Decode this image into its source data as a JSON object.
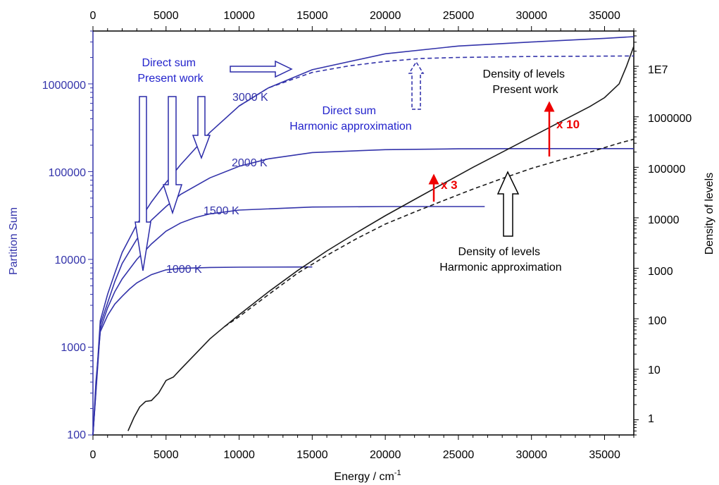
{
  "chart_data": {
    "type": "line",
    "xlabel": "Energy / cm",
    "xlabel_superscript": "-1",
    "ylabel_left": "Partition Sum",
    "ylabel_right": "Density of levels",
    "xlim": [
      0,
      37000
    ],
    "ylim_left": [
      100,
      4000000
    ],
    "ylim_right": [
      0.5,
      50000000
    ],
    "log_scale_y": true,
    "x_ticks": [
      "0",
      "5000",
      "10000",
      "15000",
      "20000",
      "25000",
      "30000",
      "35000"
    ],
    "y_left_ticks": [
      "100",
      "1000",
      "10000",
      "100000",
      "1000000"
    ],
    "y_right_ticks": [
      "1",
      "10",
      "100",
      "1000",
      "10000",
      "100000",
      "1000000",
      "1E7"
    ],
    "colors": {
      "partition": "#3333aa",
      "density": "#1a1a1a",
      "highlight": "#ee0000",
      "text_blue": "#2222cc"
    },
    "series": [
      {
        "axis": "left",
        "style": "solid",
        "label": "1000 K",
        "x": [
          0,
          200,
          500,
          1000,
          1500,
          2000,
          2500,
          3000,
          4000,
          5000,
          6000,
          8000,
          10000,
          15000
        ],
        "y": [
          100,
          400,
          1500,
          2300,
          3100,
          3800,
          4600,
          5400,
          6700,
          7600,
          7900,
          8100,
          8150,
          8200
        ]
      },
      {
        "axis": "left",
        "style": "solid",
        "label": "1500 K",
        "x": [
          0,
          500,
          1000,
          1500,
          2000,
          3000,
          4000,
          5000,
          6000,
          7000,
          8000,
          10000,
          15000,
          20000,
          26800
        ],
        "y": [
          100,
          1600,
          2800,
          4300,
          6000,
          10000,
          15000,
          21000,
          26000,
          30000,
          33000,
          36500,
          39500,
          40000,
          40000
        ]
      },
      {
        "axis": "left",
        "style": "solid",
        "label": "2000 K",
        "x": [
          0,
          500,
          1000,
          1500,
          2000,
          3000,
          4000,
          5000,
          6000,
          8000,
          10000,
          12000,
          15000,
          20000,
          25000,
          30000,
          37000
        ],
        "y": [
          100,
          1800,
          3200,
          5600,
          9000,
          17000,
          28000,
          40000,
          55000,
          85000,
          115000,
          140000,
          165000,
          178000,
          182000,
          183000,
          183000
        ]
      },
      {
        "axis": "left",
        "style": "solid",
        "label": "3000 K",
        "x": [
          0,
          500,
          1000,
          1500,
          2000,
          3000,
          4000,
          5000,
          6000,
          8000,
          10000,
          12000,
          15000,
          20000,
          25000,
          30000,
          35000,
          37000
        ],
        "y": [
          100,
          2000,
          4000,
          7000,
          12000,
          25000,
          45000,
          75000,
          120000,
          280000,
          560000,
          900000,
          1450000,
          2200000,
          2700000,
          3000000,
          3300000,
          3450000
        ]
      },
      {
        "axis": "left",
        "style": "dashed",
        "x": [
          10000,
          12000,
          15000,
          17500,
          20000,
          22500,
          25000,
          30000,
          37000
        ],
        "y": [
          560000,
          900000,
          1350000,
          1600000,
          1800000,
          1950000,
          2000000,
          2050000,
          2080000
        ]
      },
      {
        "axis": "right",
        "style": "solid",
        "x": [
          2400,
          2800,
          3200,
          3600,
          4000,
          4500,
          5000,
          5500,
          6000,
          7000,
          8000,
          9000,
          10000,
          12000,
          14000,
          16000,
          18000,
          20000,
          22000,
          24000,
          26000,
          28000,
          30000,
          32000,
          34000,
          35000,
          36000,
          36500,
          37000
        ],
        "y": [
          0.6,
          1.1,
          1.8,
          2.3,
          2.4,
          3.4,
          6,
          7,
          10,
          20,
          40,
          70,
          120,
          340,
          900,
          2200,
          5000,
          11000,
          23000,
          48000,
          100000,
          200000,
          400000,
          800000,
          1600000,
          2400000,
          4500000,
          10000000,
          25000000
        ]
      },
      {
        "axis": "right",
        "style": "dashed",
        "x": [
          9000,
          10000,
          12000,
          14000,
          16000,
          18000,
          20000,
          22000,
          24000,
          26000,
          28000,
          30000,
          32000,
          34000,
          36000,
          37000
        ],
        "y": [
          70,
          110,
          300,
          800,
          1800,
          3800,
          7500,
          13000,
          22000,
          37000,
          60000,
          95000,
          140000,
          200000,
          300000,
          360000
        ]
      }
    ],
    "temperature_labels": [
      "3000 K",
      "2000 K",
      "1500 K",
      "1000 K"
    ],
    "annotations": {
      "direct_present_line1": "Direct sum",
      "direct_present_line2": "Present work",
      "direct_harm_line1": "Direct sum",
      "direct_harm_line2": "Harmonic approximation",
      "density_present_line1": "Density of levels",
      "density_present_line2": "Present work",
      "density_harm_line1": "Density of levels",
      "density_harm_line2": "Harmonic approximation",
      "factor_3": "x 3",
      "factor_10": "x 10"
    }
  }
}
